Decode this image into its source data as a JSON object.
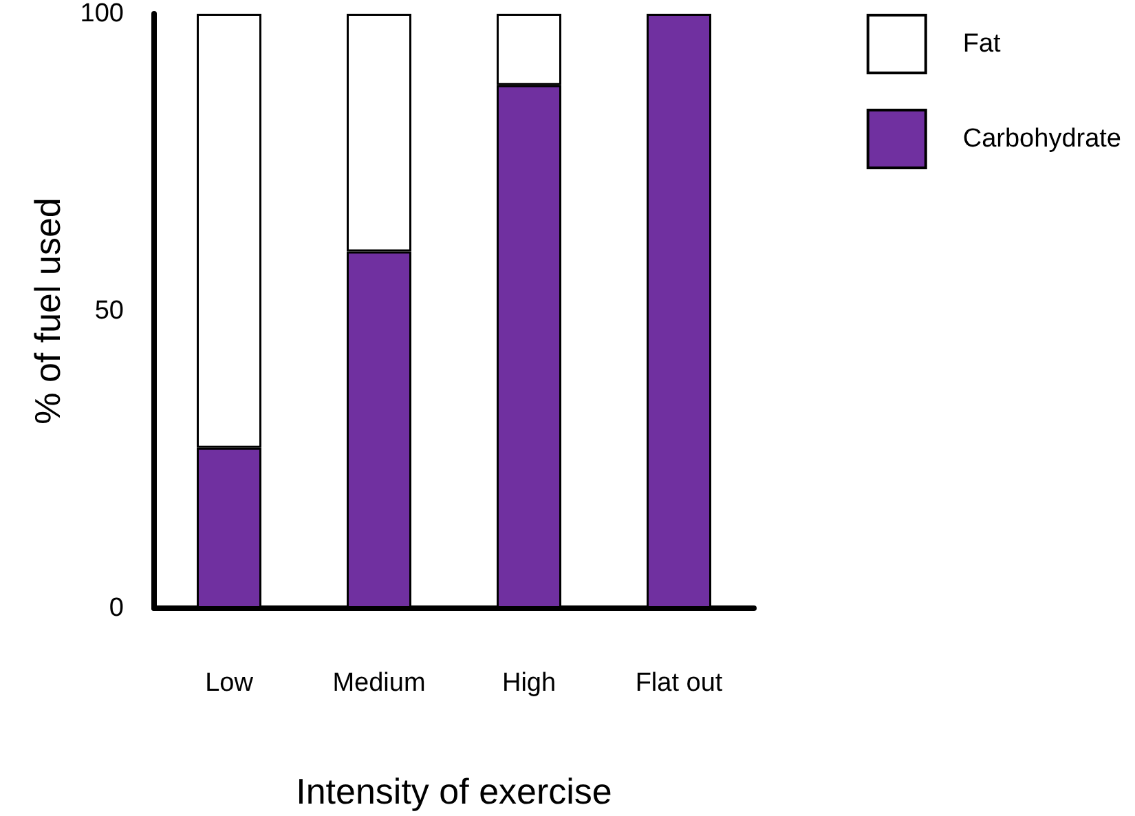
{
  "chart_data": {
    "type": "bar",
    "stacked": true,
    "xlabel": "Intensity of exercise",
    "ylabel": "% of fuel used",
    "categories": [
      "Low",
      "Medium",
      "High",
      "Flat out"
    ],
    "series": [
      {
        "name": "Carbohydrate",
        "color": "#7030a0",
        "values": [
          27,
          60,
          88,
          100
        ]
      },
      {
        "name": "Fat",
        "color": "#ffffff",
        "values": [
          73,
          40,
          12,
          null
        ]
      }
    ],
    "ylim": [
      0,
      100
    ],
    "yticks": [
      0,
      50,
      100
    ],
    "grid": false,
    "legend": "top right"
  }
}
